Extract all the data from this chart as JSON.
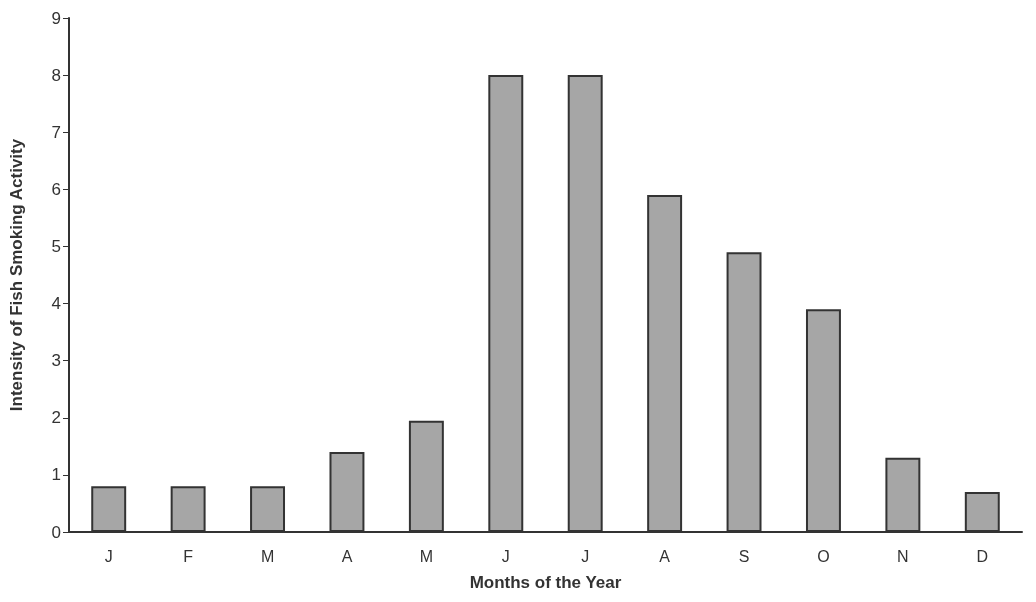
{
  "chart_data": {
    "type": "bar",
    "xlabel": "Months of the Year",
    "ylabel": "Intensity of Fish Smoking Activity",
    "categories": [
      "J",
      "F",
      "M",
      "A",
      "M",
      "J",
      "J",
      "A",
      "S",
      "O",
      "N",
      "D"
    ],
    "values": [
      0.8,
      0.8,
      0.8,
      1.4,
      1.95,
      8.0,
      8.0,
      5.9,
      4.9,
      3.9,
      1.3,
      0.7
    ],
    "color": "#a6a6a6",
    "ylim": [
      0,
      9
    ],
    "yticks": [
      0,
      1,
      2,
      3,
      4,
      5,
      6,
      7,
      8,
      9
    ],
    "grid": false
  }
}
